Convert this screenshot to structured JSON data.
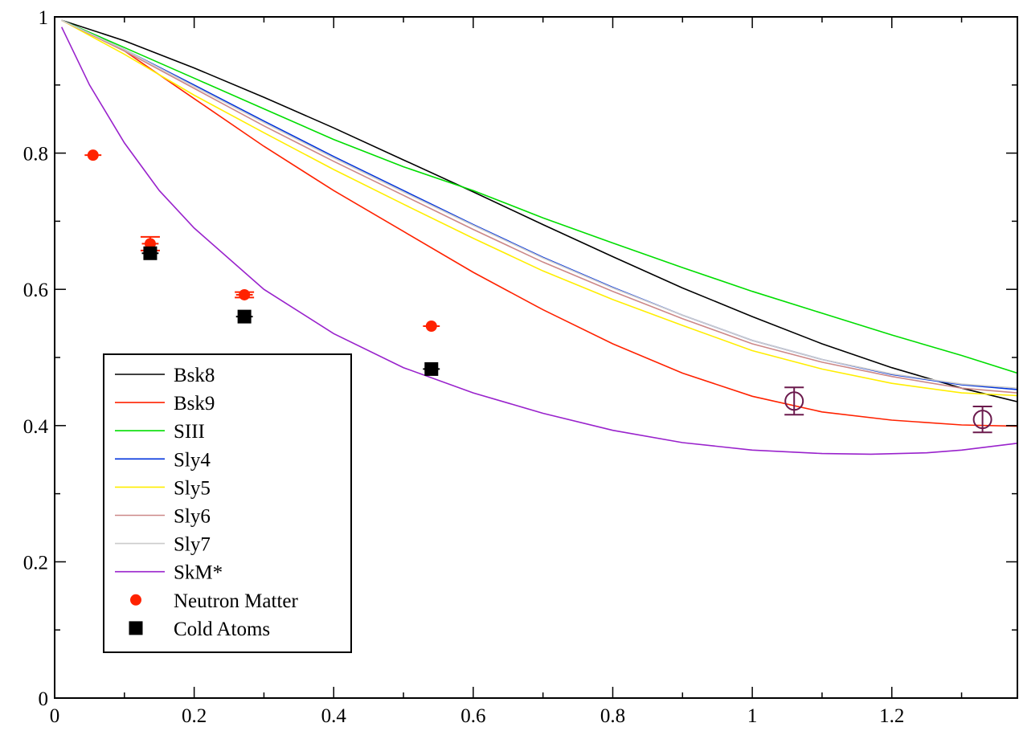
{
  "chart_data": {
    "type": "line",
    "title": "",
    "xlabel": "",
    "ylabel": "",
    "xlim": [
      0,
      1.38
    ],
    "ylim": [
      0,
      1
    ],
    "x_ticks": [
      {
        "value": 0,
        "label": "0"
      },
      {
        "value": 0.2,
        "label": "0.2"
      },
      {
        "value": 0.4,
        "label": "0.4"
      },
      {
        "value": 0.6,
        "label": "0.6"
      },
      {
        "value": 0.8,
        "label": "0.8"
      },
      {
        "value": 1,
        "label": "1"
      },
      {
        "value": 1.2,
        "label": "1.2"
      }
    ],
    "y_ticks": [
      {
        "value": 0,
        "label": "0"
      },
      {
        "value": 0.2,
        "label": "0.2"
      },
      {
        "value": 0.4,
        "label": "0.4"
      },
      {
        "value": 0.6,
        "label": "0.6"
      },
      {
        "value": 0.8,
        "label": "0.8"
      },
      {
        "value": 1,
        "label": "1"
      }
    ],
    "grid": false,
    "legend_position": "bottom-left",
    "series": [
      {
        "name": "Bsk8",
        "color": "#000000",
        "points": [
          [
            0.01,
            0.995
          ],
          [
            0.1,
            0.965
          ],
          [
            0.2,
            0.925
          ],
          [
            0.3,
            0.882
          ],
          [
            0.4,
            0.837
          ],
          [
            0.5,
            0.79
          ],
          [
            0.6,
            0.743
          ],
          [
            0.7,
            0.695
          ],
          [
            0.8,
            0.648
          ],
          [
            0.9,
            0.602
          ],
          [
            1.0,
            0.56
          ],
          [
            1.1,
            0.52
          ],
          [
            1.2,
            0.485
          ],
          [
            1.3,
            0.455
          ],
          [
            1.38,
            0.435
          ]
        ]
      },
      {
        "name": "Bsk9",
        "color": "#ff2200",
        "points": [
          [
            0.01,
            0.995
          ],
          [
            0.1,
            0.95
          ],
          [
            0.2,
            0.88
          ],
          [
            0.3,
            0.81
          ],
          [
            0.4,
            0.745
          ],
          [
            0.5,
            0.685
          ],
          [
            0.6,
            0.625
          ],
          [
            0.7,
            0.57
          ],
          [
            0.8,
            0.52
          ],
          [
            0.9,
            0.477
          ],
          [
            1.0,
            0.443
          ],
          [
            1.1,
            0.42
          ],
          [
            1.2,
            0.408
          ],
          [
            1.3,
            0.401
          ],
          [
            1.38,
            0.399
          ]
        ]
      },
      {
        "name": "SIII",
        "color": "#00dd00",
        "points": [
          [
            0.01,
            0.995
          ],
          [
            0.1,
            0.955
          ],
          [
            0.2,
            0.91
          ],
          [
            0.3,
            0.865
          ],
          [
            0.4,
            0.82
          ],
          [
            0.5,
            0.78
          ],
          [
            0.6,
            0.745
          ],
          [
            0.7,
            0.705
          ],
          [
            0.8,
            0.668
          ],
          [
            0.9,
            0.632
          ],
          [
            1.0,
            0.597
          ],
          [
            1.1,
            0.565
          ],
          [
            1.2,
            0.533
          ],
          [
            1.3,
            0.503
          ],
          [
            1.38,
            0.477
          ]
        ]
      },
      {
        "name": "Sly4",
        "color": "#0033dd",
        "points": [
          [
            0.01,
            0.995
          ],
          [
            0.1,
            0.952
          ],
          [
            0.2,
            0.9
          ],
          [
            0.3,
            0.847
          ],
          [
            0.4,
            0.795
          ],
          [
            0.5,
            0.745
          ],
          [
            0.6,
            0.695
          ],
          [
            0.7,
            0.647
          ],
          [
            0.8,
            0.603
          ],
          [
            0.9,
            0.562
          ],
          [
            1.0,
            0.525
          ],
          [
            1.1,
            0.497
          ],
          [
            1.2,
            0.475
          ],
          [
            1.3,
            0.46
          ],
          [
            1.38,
            0.453
          ]
        ]
      },
      {
        "name": "Sly5",
        "color": "#ffee00",
        "points": [
          [
            0.01,
            0.995
          ],
          [
            0.1,
            0.945
          ],
          [
            0.2,
            0.885
          ],
          [
            0.3,
            0.83
          ],
          [
            0.4,
            0.776
          ],
          [
            0.5,
            0.725
          ],
          [
            0.6,
            0.675
          ],
          [
            0.7,
            0.627
          ],
          [
            0.8,
            0.585
          ],
          [
            0.9,
            0.547
          ],
          [
            1.0,
            0.51
          ],
          [
            1.1,
            0.483
          ],
          [
            1.2,
            0.462
          ],
          [
            1.3,
            0.448
          ],
          [
            1.38,
            0.444
          ]
        ]
      },
      {
        "name": "Sly6",
        "color": "#cc8888",
        "points": [
          [
            0.01,
            0.995
          ],
          [
            0.1,
            0.95
          ],
          [
            0.2,
            0.895
          ],
          [
            0.3,
            0.84
          ],
          [
            0.4,
            0.788
          ],
          [
            0.5,
            0.738
          ],
          [
            0.6,
            0.688
          ],
          [
            0.7,
            0.64
          ],
          [
            0.8,
            0.597
          ],
          [
            0.9,
            0.557
          ],
          [
            1.0,
            0.52
          ],
          [
            1.1,
            0.493
          ],
          [
            1.2,
            0.472
          ],
          [
            1.3,
            0.455
          ],
          [
            1.38,
            0.448
          ]
        ]
      },
      {
        "name": "Sly7",
        "color": "#cccccc",
        "points": [
          [
            0.01,
            0.995
          ],
          [
            0.1,
            0.952
          ],
          [
            0.2,
            0.898
          ],
          [
            0.3,
            0.845
          ],
          [
            0.4,
            0.793
          ],
          [
            0.5,
            0.743
          ],
          [
            0.6,
            0.694
          ],
          [
            0.7,
            0.646
          ],
          [
            0.8,
            0.602
          ],
          [
            0.9,
            0.562
          ],
          [
            1.0,
            0.525
          ],
          [
            1.1,
            0.497
          ],
          [
            1.2,
            0.476
          ],
          [
            1.3,
            0.461
          ],
          [
            1.38,
            0.455
          ]
        ]
      },
      {
        "name": "SkM*",
        "color": "#9922cc",
        "points": [
          [
            0.01,
            0.985
          ],
          [
            0.05,
            0.9
          ],
          [
            0.1,
            0.815
          ],
          [
            0.15,
            0.745
          ],
          [
            0.2,
            0.69
          ],
          [
            0.3,
            0.6
          ],
          [
            0.4,
            0.535
          ],
          [
            0.5,
            0.485
          ],
          [
            0.6,
            0.448
          ],
          [
            0.7,
            0.418
          ],
          [
            0.8,
            0.393
          ],
          [
            0.9,
            0.375
          ],
          [
            1.0,
            0.364
          ],
          [
            1.1,
            0.359
          ],
          [
            1.17,
            0.358
          ],
          [
            1.25,
            0.36
          ],
          [
            1.3,
            0.364
          ],
          [
            1.38,
            0.374
          ]
        ]
      }
    ],
    "markers": [
      {
        "name": "Neutron Matter",
        "color": "#ff2200",
        "shape": "circle",
        "points": [
          {
            "x": 0.055,
            "y": 0.797,
            "xerr": 0.012,
            "yerr": 0.0
          },
          {
            "x": 0.137,
            "y": 0.667,
            "xerr": 0.012,
            "yerr": 0.01
          },
          {
            "x": 0.272,
            "y": 0.592,
            "xerr": 0.012,
            "yerr": 0.004
          },
          {
            "x": 0.54,
            "y": 0.546,
            "xerr": 0.012,
            "yerr": 0.0
          }
        ]
      },
      {
        "name": "Cold Atoms",
        "color": "#000000",
        "shape": "square",
        "points": [
          {
            "x": 0.137,
            "y": 0.653,
            "xerr": 0.012,
            "yerr": 0.0
          },
          {
            "x": 0.272,
            "y": 0.56,
            "xerr": 0.012,
            "yerr": 0.0
          },
          {
            "x": 0.54,
            "y": 0.483,
            "xerr": 0.012,
            "yerr": 0.0
          }
        ]
      },
      {
        "name": "",
        "color": "#6b1a4d",
        "shape": "open-circle",
        "points": [
          {
            "x": 1.06,
            "y": 0.436,
            "xerr": 0.0,
            "yerr": 0.02
          },
          {
            "x": 1.33,
            "y": 0.409,
            "xerr": 0.0,
            "yerr": 0.019
          }
        ]
      }
    ]
  }
}
